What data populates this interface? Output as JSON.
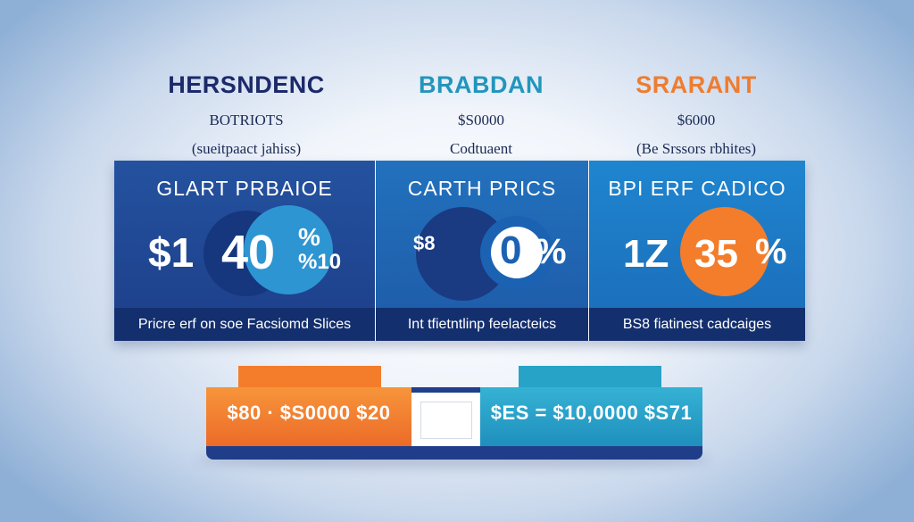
{
  "headers": [
    {
      "name": "HERSNDENC",
      "sub": "BOTRIOTS",
      "note": "(sueitpaact jahiss)"
    },
    {
      "name": "BRABDAN",
      "sub": "$S0000",
      "note": "Codtuaent"
    },
    {
      "name": "SRARANT",
      "sub": "$6000",
      "note": "(Be Srssors rbhites)"
    }
  ],
  "panels": [
    {
      "title": "GLART PRBAIOE",
      "left_text": "$1",
      "circle_text": "40",
      "right_top": "%",
      "right_bottom": "%10",
      "footer": "Pricre erf on soe Facsiomd Slices"
    },
    {
      "title": "CARTH PRICS",
      "left_text": "$8",
      "circle_text": "0",
      "right_text": "%",
      "footer": "Int tfietntlinp feelacteics"
    },
    {
      "title": "BPI ERF CADICO",
      "left_text": "1Z",
      "circle_text": "35",
      "right_text": "%",
      "footer": "BS8 fiatinest cadcaiges"
    }
  ],
  "bottom": {
    "left_bar": "$80 · $S0000 $20",
    "right_bar": "$ES = $10,0000 $S71"
  },
  "colors": {
    "navy": "#1d3e89",
    "blue": "#2271bd",
    "teal": "#27a3c7",
    "orange": "#f37d2b"
  }
}
